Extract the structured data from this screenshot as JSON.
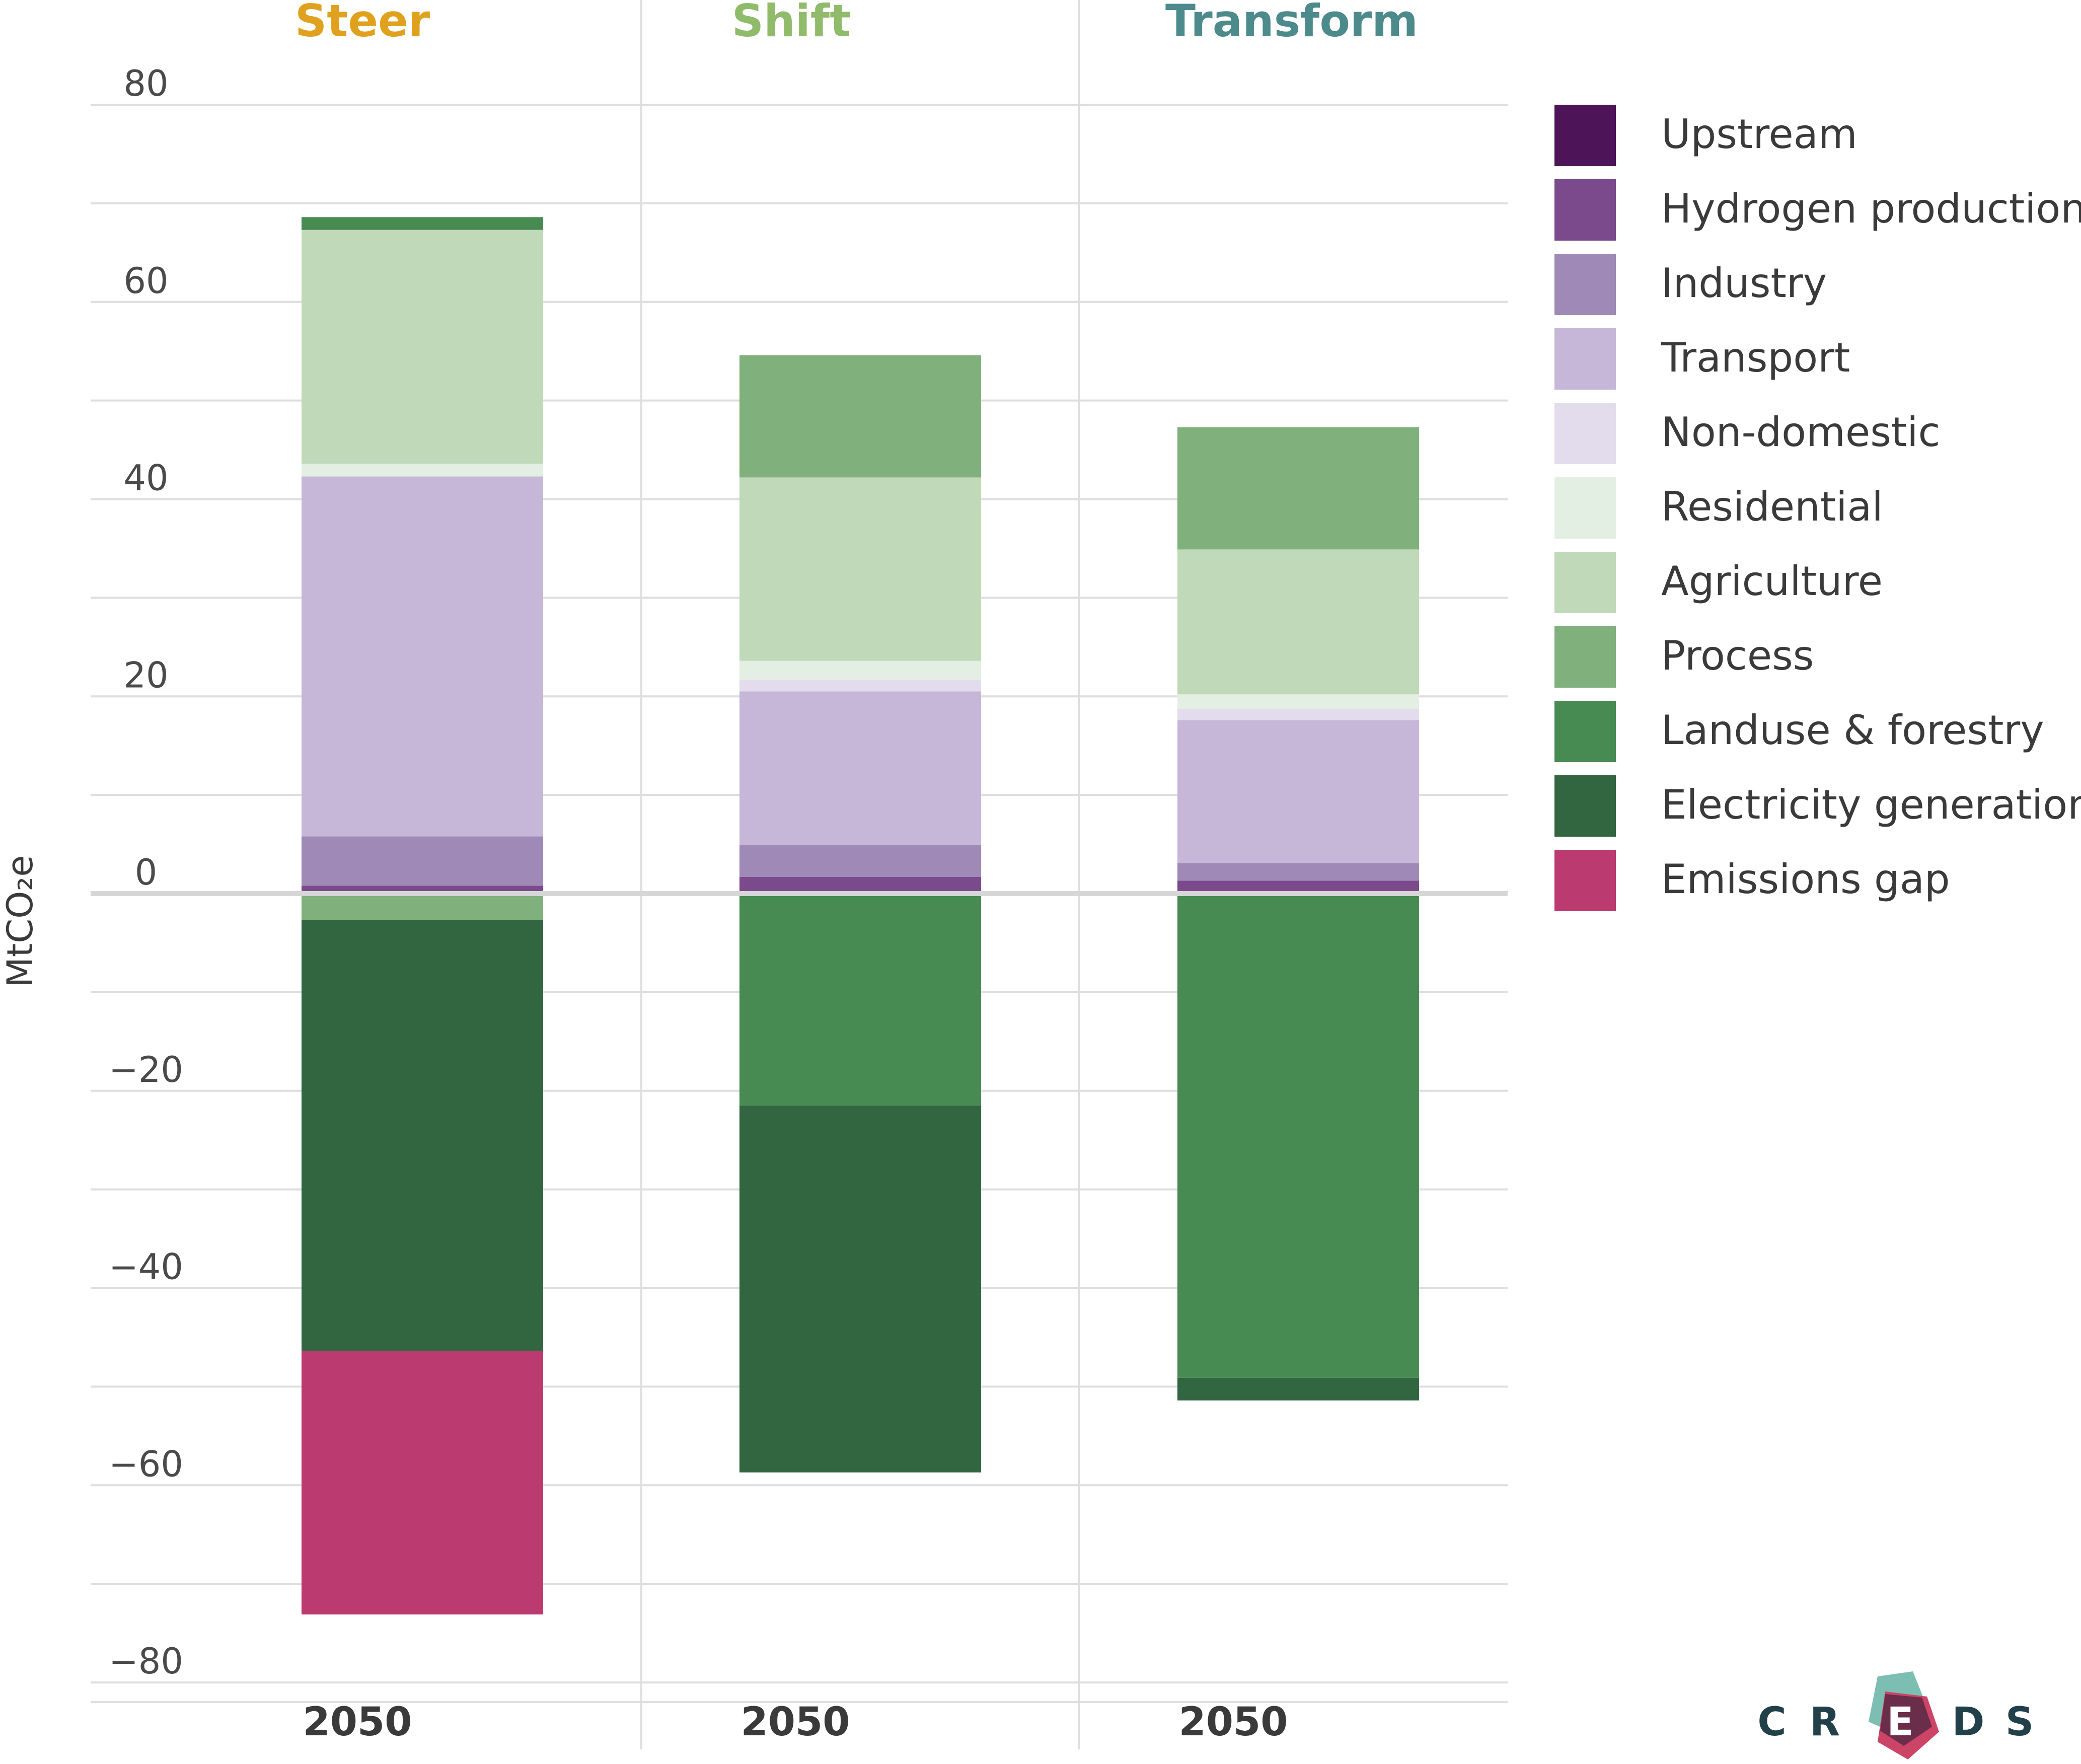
{
  "chart_data": {
    "type": "bar",
    "stacked": true,
    "panels": [
      {
        "title": "Steer",
        "title_color": "#e0a21e",
        "category": "2050"
      },
      {
        "title": "Shift",
        "title_color": "#8fbb6a",
        "category": "2050"
      },
      {
        "title": "Transform",
        "title_color": "#4d8a8c",
        "category": "2050"
      }
    ],
    "ylabel": "MtCO₂e",
    "ylim": [
      -82,
      82
    ],
    "yticks": [
      80,
      60,
      40,
      20,
      0,
      -20,
      -40,
      -60,
      -80
    ],
    "ytick_labels": [
      "80",
      "60",
      "40",
      "20",
      "0",
      "−20",
      "−40",
      "−60",
      "−80"
    ],
    "grid": true,
    "legend_position": "right",
    "series": [
      {
        "name": "Upstream",
        "color": "#4d1557",
        "values": [
          0,
          0,
          0
        ]
      },
      {
        "name": "Hydrogen production",
        "color": "#7b4a8c",
        "values": [
          0.8,
          1.7,
          1.3
        ]
      },
      {
        "name": "Industry",
        "color": "#9f89b6",
        "values": [
          5,
          3.2,
          1.8
        ]
      },
      {
        "name": "Transport",
        "color": "#c6b7d9",
        "values": [
          36.5,
          15.6,
          14.5
        ]
      },
      {
        "name": "Non-domestic",
        "color": "#e2dced",
        "values": [
          0,
          1.2,
          1.1
        ]
      },
      {
        "name": "Residential",
        "color": "#e3efe2",
        "values": [
          1.3,
          1.9,
          1.5
        ]
      },
      {
        "name": "Agriculture",
        "color": "#c0d9b9",
        "values": [
          23.7,
          18.6,
          14.7
        ]
      },
      {
        "name": "Process",
        "color": "#80b07b",
        "values": [
          -2.7,
          12.4,
          12.4
        ]
      },
      {
        "name": "Landuse & forestry",
        "color": "#478b52",
        "values": [
          1.3,
          -21.5,
          -49.1
        ]
      },
      {
        "name": "Electricity generation",
        "color": "#326641",
        "values": [
          -43.7,
          -37.2,
          -2.3
        ]
      },
      {
        "name": "Emissions gap",
        "color": "#bb3a70",
        "values": [
          -26.7,
          0,
          0
        ]
      }
    ]
  },
  "logo": {
    "letters": [
      "C",
      "R",
      "E",
      "D",
      "S"
    ]
  }
}
